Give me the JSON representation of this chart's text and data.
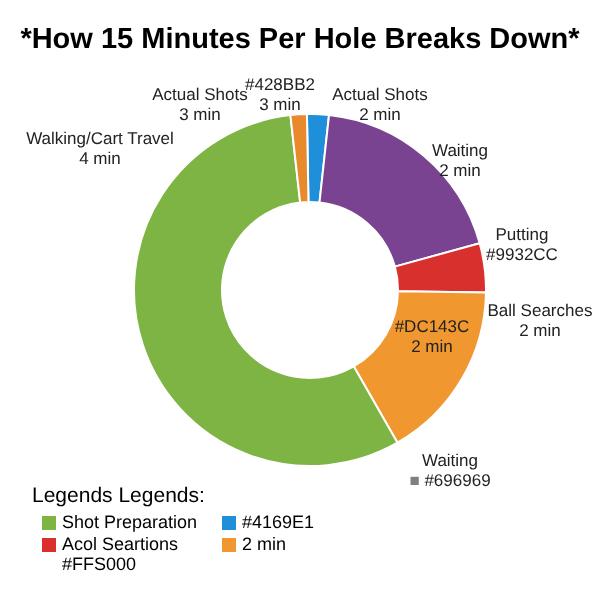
{
  "chart_data": {
    "type": "donut",
    "title": "*How 15 Minutes Per Hole Breaks Down*",
    "categories": [
      "#4169E1",
      null,
      "Acol Seartions #FFS000",
      "2 min",
      "Shot Preparation",
      null
    ],
    "values": [
      2,
      19,
      4.5,
      16.5,
      56.5,
      1.5
    ],
    "colors": [
      "#1e8fd8",
      "#7a4392",
      "#d8302d",
      "#f0972f",
      "#7db443",
      "#e88a2c"
    ],
    "legend": "bottom left",
    "legend_title": "Legends Legends:",
    "annotations": [
      "Walking/Cart Travel\n4 min",
      "Actual Shots\n3 min",
      "#428BB2\n3 min",
      "Actual Shots\n2 min",
      "Waiting\n2 min",
      "Putting\n#9932CC",
      "#DC143C\n2 min",
      "Ball Searches\n2 min",
      "Waiting\n■ #696969"
    ]
  }
}
